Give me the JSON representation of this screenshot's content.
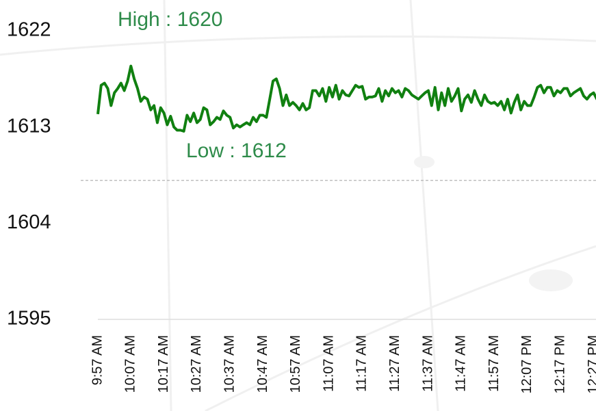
{
  "chart_data": {
    "type": "line",
    "categories": [
      "9:57 AM",
      null,
      null,
      null,
      null,
      null,
      null,
      null,
      null,
      null,
      "10:07 AM",
      null,
      null,
      null,
      null,
      null,
      null,
      null,
      null,
      null,
      "10:17 AM",
      null,
      null,
      null,
      null,
      null,
      null,
      null,
      null,
      null,
      "10:27 AM",
      null,
      null,
      null,
      null,
      null,
      null,
      null,
      null,
      null,
      "10:37 AM",
      null,
      null,
      null,
      null,
      null,
      null,
      null,
      null,
      null,
      "10:47 AM",
      null,
      null,
      null,
      null,
      null,
      null,
      null,
      null,
      null,
      "10:57 AM",
      null,
      null,
      null,
      null,
      null,
      null,
      null,
      null,
      null,
      "11:07 AM",
      null,
      null,
      null,
      null,
      null,
      null,
      null,
      null,
      null,
      "11:17 AM",
      null,
      null,
      null,
      null,
      null,
      null,
      null,
      null,
      null,
      "11:27 AM",
      null,
      null,
      null,
      null,
      null,
      null,
      null,
      null,
      null,
      "11:37 AM",
      null,
      null,
      null,
      null,
      null,
      null,
      null,
      null,
      null,
      "11:47 AM",
      null,
      null,
      null,
      null,
      null,
      null,
      null,
      null,
      null,
      "11:57 AM",
      null,
      null,
      null,
      null,
      null,
      null,
      null,
      null,
      null,
      "12:07 PM",
      null,
      null,
      null,
      null,
      null,
      null,
      null,
      null,
      null,
      "12:17 PM",
      null,
      null,
      null,
      null,
      null,
      null,
      null,
      null,
      null,
      "12:27 PM",
      null,
      null
    ],
    "series": [
      {
        "color": "#108010",
        "values": [
          1614.2,
          1616.9,
          1617.1,
          1616.6,
          1615.0,
          1616.2,
          1616.6,
          1617.1,
          1616.4,
          1617.3,
          1618.7,
          1617.5,
          1616.6,
          1615.4,
          1615.8,
          1615.6,
          1614.6,
          1615.0,
          1613.4,
          1614.8,
          1614.3,
          1613.2,
          1614.0,
          1613.0,
          1612.7,
          1612.7,
          1612.6,
          1614.1,
          1613.5,
          1614.3,
          1613.4,
          1613.7,
          1614.8,
          1614.6,
          1613.2,
          1613.5,
          1613.9,
          1613.7,
          1614.5,
          1614.1,
          1613.9,
          1612.9,
          1613.2,
          1613.0,
          1613.2,
          1613.4,
          1613.2,
          1613.9,
          1613.5,
          1614.1,
          1614.1,
          1613.9,
          1615.6,
          1617.3,
          1617.5,
          1616.6,
          1615.0,
          1616.0,
          1615.0,
          1615.3,
          1615.0,
          1614.6,
          1615.2,
          1614.6,
          1614.8,
          1616.4,
          1616.4,
          1615.9,
          1616.6,
          1615.4,
          1616.7,
          1615.8,
          1616.9,
          1615.6,
          1616.4,
          1616.0,
          1615.9,
          1616.4,
          1616.9,
          1616.7,
          1616.8,
          1615.6,
          1615.8,
          1615.8,
          1615.9,
          1616.6,
          1615.4,
          1616.4,
          1615.9,
          1616.6,
          1616.2,
          1616.4,
          1615.8,
          1616.6,
          1616.4,
          1616.0,
          1615.8,
          1615.6,
          1615.9,
          1616.2,
          1616.4,
          1615.0,
          1616.7,
          1614.6,
          1616.2,
          1615.0,
          1616.6,
          1615.4,
          1615.9,
          1616.6,
          1614.5,
          1615.6,
          1616.0,
          1615.3,
          1616.4,
          1615.6,
          1615.0,
          1616.0,
          1615.4,
          1615.2,
          1615.3,
          1615.0,
          1615.4,
          1614.6,
          1615.6,
          1614.3,
          1615.3,
          1616.0,
          1614.6,
          1615.4,
          1615.0,
          1615.0,
          1615.8,
          1616.7,
          1616.9,
          1616.2,
          1616.7,
          1616.7,
          1615.9,
          1616.4,
          1616.2,
          1616.6,
          1616.6,
          1615.9,
          1616.2,
          1616.4,
          1616.6,
          1615.9,
          1615.6,
          1616.0,
          1616.2,
          1615.6,
          1616.4
        ]
      }
    ],
    "ylim": [
      1595,
      1622
    ],
    "yticks": [
      1595,
      1604,
      1613,
      1622
    ],
    "reference_line": 1608,
    "annotations": [
      "High : 1620",
      "Low : 1612"
    ]
  }
}
